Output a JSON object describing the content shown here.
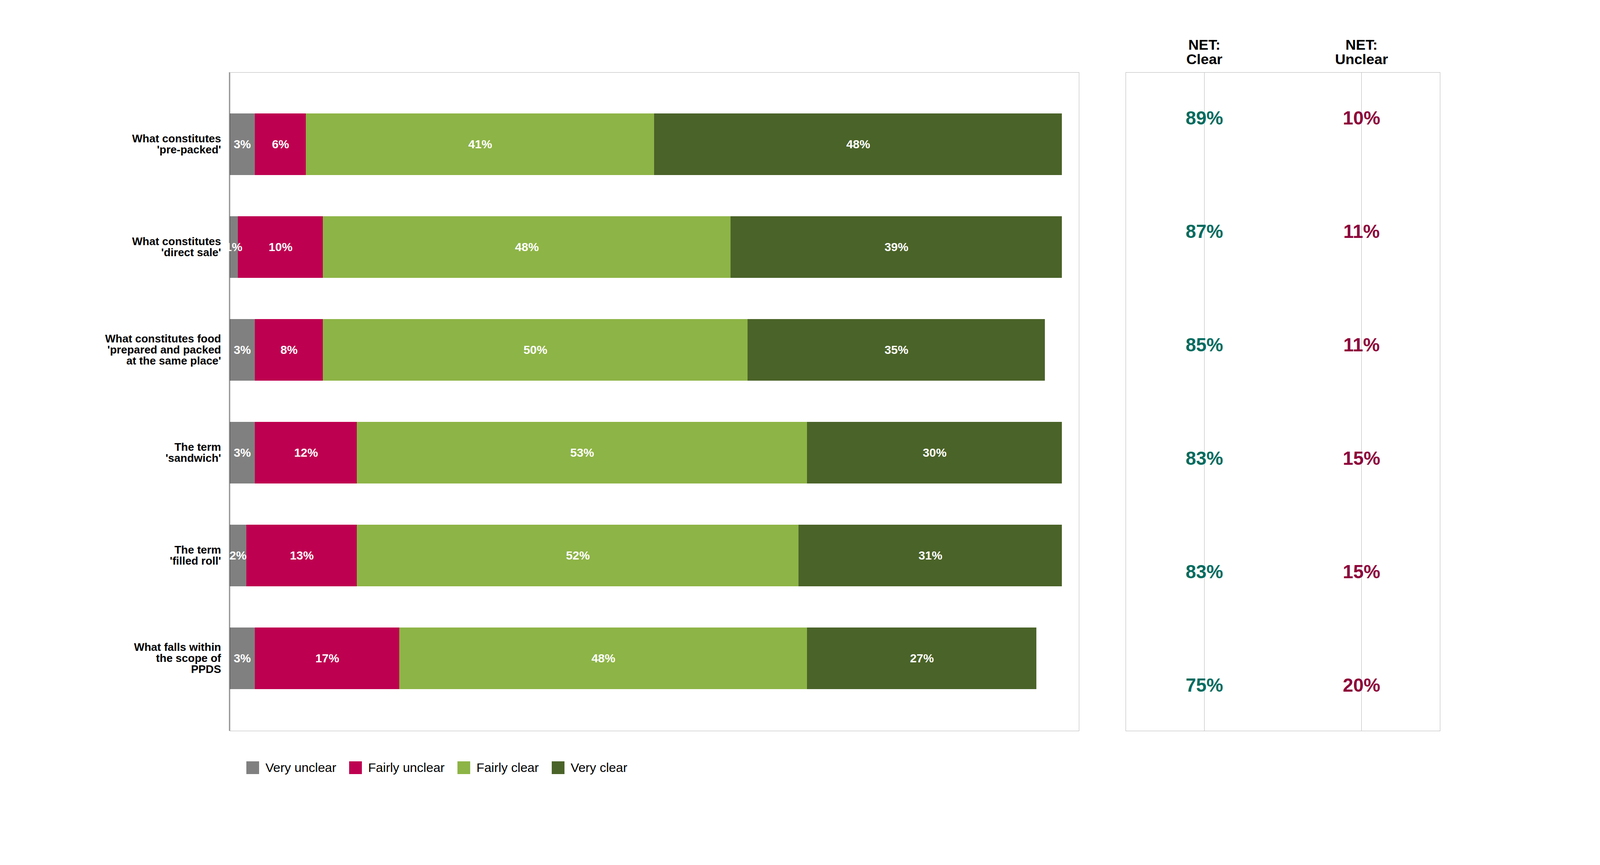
{
  "chart_data": [
    {
      "type": "bar",
      "orientation": "horizontal",
      "stacked": true,
      "data_labels": true,
      "tick_labels": "y",
      "legend": "bottom",
      "categories": [
        "What constitutes\n'pre-packed'",
        "What constitutes\n'direct sale'",
        "What constitutes food\n'prepared and packed\nat the same place'",
        "The term\n'sandwich'",
        "The term\n'filled roll'",
        "What falls within\nthe scope of\nPPDS"
      ],
      "series": [
        {
          "name": "Very unclear",
          "color": "#808080",
          "values": [
            3,
            1,
            3,
            3,
            2,
            3
          ],
          "value_labels": [
            "3%",
            "1%",
            "3%",
            "3%",
            "2%",
            "3%"
          ]
        },
        {
          "name": "Fairly unclear",
          "color": "#BE0050",
          "values": [
            6,
            10,
            8,
            12,
            13,
            17
          ],
          "value_labels": [
            "6%",
            "10%",
            "8%",
            "12%",
            "13%",
            "17%"
          ]
        },
        {
          "name": "Fairly clear",
          "color": "#8DB446",
          "values": [
            41,
            48,
            50,
            53,
            52,
            48
          ],
          "value_labels": [
            "41%",
            "48%",
            "50%",
            "53%",
            "52%",
            "48%"
          ]
        },
        {
          "name": "Very clear",
          "color": "#4A6328",
          "values": [
            48,
            39,
            35,
            30,
            31,
            27
          ],
          "value_labels": [
            "48%",
            "39%",
            "35%",
            "30%",
            "31%",
            "27%"
          ]
        }
      ],
      "xlim": [
        0,
        100
      ]
    },
    {
      "type": "table",
      "data_labels": true,
      "tick_labels": "x",
      "categories": [
        "What constitutes\n'pre-packed'",
        "What constitutes\n'direct sale'",
        "What constitutes food\n'prepared and packed\nat the same place'",
        "The term\n'sandwich'",
        "The term\n'filled roll'",
        "What falls within\nthe scope of\nPPDS"
      ],
      "series": [
        {
          "name": "NET:\nClear",
          "color": "#006B5E",
          "values": [
            89,
            87,
            85,
            83,
            83,
            75
          ],
          "value_labels": [
            "89%",
            "87%",
            "85%",
            "83%",
            "83%",
            "75%"
          ]
        },
        {
          "name": "NET:\nUnclear",
          "color": "#8C003A",
          "values": [
            10,
            11,
            11,
            15,
            15,
            20
          ],
          "value_labels": [
            "10%",
            "11%",
            "11%",
            "15%",
            "15%",
            "20%"
          ]
        }
      ]
    }
  ]
}
